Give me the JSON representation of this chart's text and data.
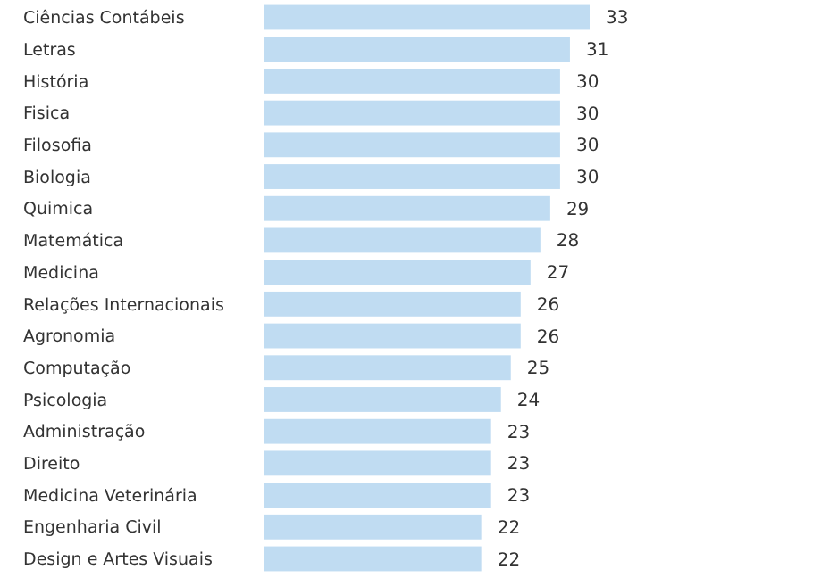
{
  "chart_data": {
    "type": "bar",
    "orientation": "horizontal",
    "data_labels": true,
    "color": "#c0dcf2",
    "categories": [
      "Ciências Contábeis",
      "Letras",
      "História",
      "Fisica",
      "Filosofia",
      "Biologia",
      "Quimica",
      "Matemática",
      "Medicina",
      "Relações Internacionais",
      "Agronomia",
      "Computação",
      "Psicologia",
      "Administração",
      "Direito",
      "Medicina Veterinária",
      "Engenharia Civil",
      "Design e Artes Visuais"
    ],
    "values": [
      33,
      31,
      30,
      30,
      30,
      30,
      29,
      28,
      27,
      26,
      26,
      25,
      24,
      23,
      23,
      23,
      22,
      22
    ]
  }
}
